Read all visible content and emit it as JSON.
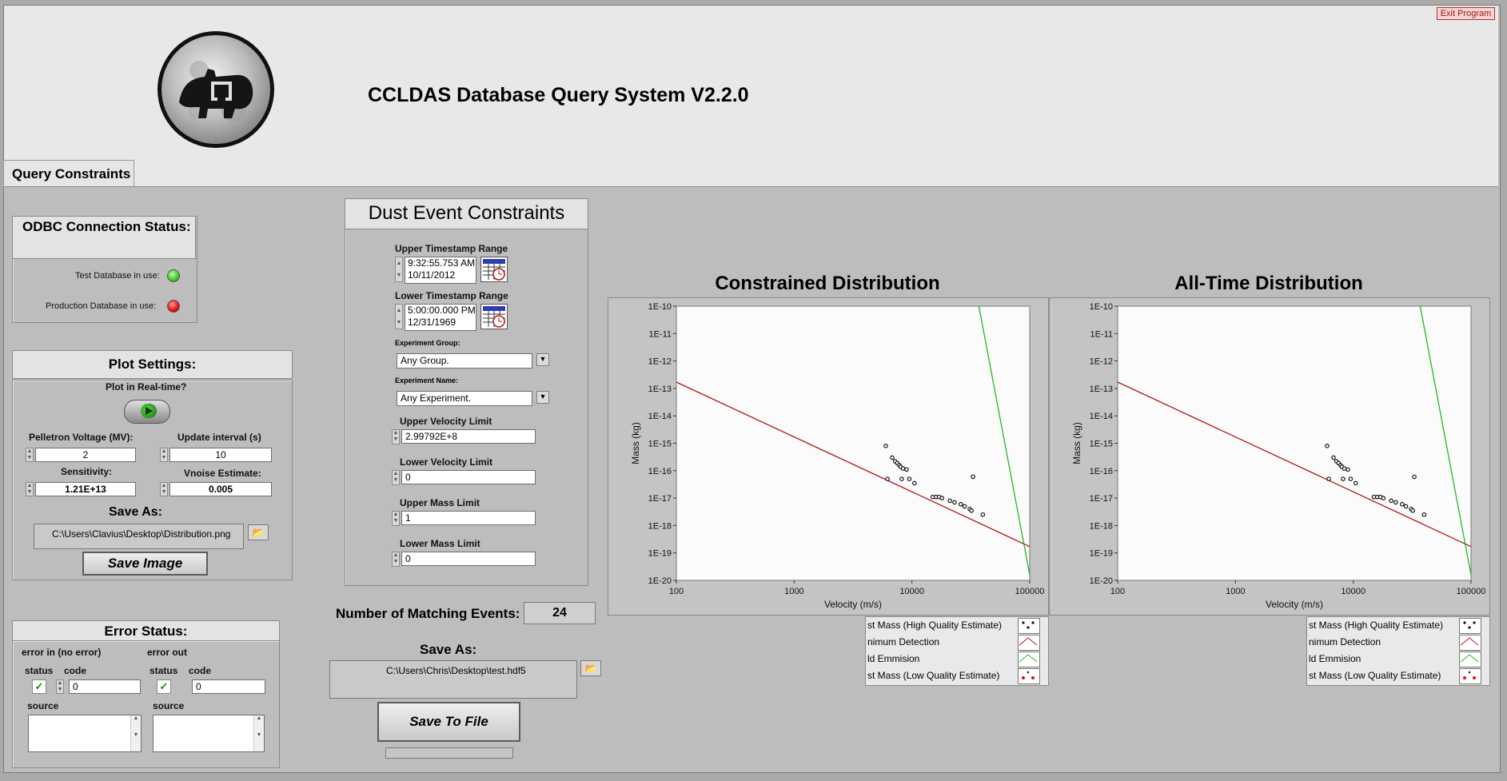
{
  "app": {
    "title": "CCLDAS Database Query System V2.2.0",
    "exit_label": "Exit Program"
  },
  "tabs": [
    {
      "label": "Query Constraints"
    }
  ],
  "odbc": {
    "title": "ODBC Connection Status:",
    "test_label": "Test Database in use:",
    "prod_label": "Production Database in use:",
    "test_color": "#3fc629",
    "prod_color": "#e01010"
  },
  "plot_settings": {
    "title": "Plot Settings:",
    "realtime_label": "Plot in Real-time?",
    "pelletron_label": "Pelletron Voltage (MV):",
    "pelletron_value": "2",
    "update_label": "Update interval (s)",
    "update_value": "10",
    "sensitivity_label": "Sensitivity:",
    "sensitivity_value": "1.21E+13",
    "vnoise_label": "Vnoise Estimate:",
    "vnoise_value": "0.005",
    "save_as_label": "Save As:",
    "save_path": "C:\\Users\\Clavius\\Desktop\\Distribution.png",
    "save_button": "Save Image"
  },
  "error_status": {
    "title": "Error Status:",
    "in_label": "error in (no error)",
    "out_label": "error out",
    "status_label": "status",
    "code_label": "code",
    "source_label": "source",
    "in_code": "0",
    "out_code": "0"
  },
  "dust": {
    "title": "Dust Event Constraints",
    "upper_ts_label": "Upper Timestamp Range",
    "upper_ts_time": "9:32:55.753 AM",
    "upper_ts_date": "10/11/2012",
    "lower_ts_label": "Lower Timestamp Range",
    "lower_ts_time": "5:00:00.000 PM",
    "lower_ts_date": "12/31/1969",
    "group_label": "Experiment Group:",
    "group_value": "Any Group.",
    "name_label": "Experiment Name:",
    "name_value": "Any Experiment.",
    "upper_vel_label": "Upper Velocity Limit",
    "upper_vel_value": "2.99792E+8",
    "lower_vel_label": "Lower Velocity Limit",
    "lower_vel_value": "0",
    "upper_mass_label": "Upper Mass Limit",
    "upper_mass_value": "1",
    "lower_mass_label": "Lower Mass Limit",
    "lower_mass_value": "0"
  },
  "matching": {
    "label": "Number of Matching Events:",
    "value": "24"
  },
  "file_save": {
    "label": "Save As:",
    "path": "C:\\Users\\Chris\\Desktop\\test.hdf5",
    "button": "Save To File"
  },
  "legend": [
    {
      "label": "st Mass (High Quality Estimate)",
      "kind": "points-black"
    },
    {
      "label": "nimum Detection",
      "kind": "line-red"
    },
    {
      "label": "ld Emmision",
      "kind": "line-green"
    },
    {
      "label": "st Mass (Low Quality Estimate)",
      "kind": "points-red"
    }
  ],
  "chart_data": [
    {
      "type": "scatter",
      "title": "Constrained Distribution",
      "xlabel": "Velocity (m/s)",
      "ylabel": "Mass (kg)",
      "x_scale": "log",
      "y_scale": "log",
      "xlim": [
        100,
        100000
      ],
      "ylim": [
        1e-20,
        1e-10
      ],
      "x_ticks": [
        "100",
        "1000",
        "10000",
        "100000"
      ],
      "y_ticks": [
        "1E-10",
        "1E-11",
        "1E-12",
        "1E-13",
        "1E-14",
        "1E-15",
        "1E-16",
        "1E-17",
        "1E-18",
        "1E-19",
        "1E-20"
      ],
      "lines": [
        {
          "name": "Minimum Detection",
          "color": "#b01818",
          "x": [
            100,
            100000
          ],
          "y": [
            1.7e-13,
            1.7e-19
          ]
        },
        {
          "name": "Field Emmision",
          "color": "#23b823",
          "x": [
            37000,
            100000
          ],
          "y": [
            1e-10,
            1.6e-20
          ]
        }
      ],
      "points": {
        "color": "#111111",
        "x": [
          6000,
          6200,
          6800,
          7200,
          7500,
          7800,
          8000,
          8200,
          8400,
          9000,
          9500,
          10500,
          15000,
          16000,
          17000,
          18000,
          21000,
          23000,
          26000,
          28000,
          31000,
          32000,
          33000,
          40000
        ],
        "y": [
          8e-16,
          5e-17,
          3e-16,
          2.2e-16,
          1.9e-16,
          1.6e-16,
          1.4e-16,
          5e-17,
          1.2e-16,
          1.1e-16,
          5e-17,
          3.5e-17,
          1.1e-17,
          1.1e-17,
          1.1e-17,
          1e-17,
          8e-18,
          7e-18,
          6e-18,
          5e-18,
          4e-18,
          3.5e-18,
          6e-17,
          2.5e-18
        ]
      }
    },
    {
      "type": "scatter",
      "title": "All-Time Distribution",
      "xlabel": "Velocity (m/s)",
      "ylabel": "Mass (kg)",
      "x_scale": "log",
      "y_scale": "log",
      "xlim": [
        100,
        100000
      ],
      "ylim": [
        1e-20,
        1e-10
      ],
      "x_ticks": [
        "100",
        "1000",
        "10000",
        "100000"
      ],
      "y_ticks": [
        "1E-10",
        "1E-11",
        "1E-12",
        "1E-13",
        "1E-14",
        "1E-15",
        "1E-16",
        "1E-17",
        "1E-18",
        "1E-19",
        "1E-20"
      ],
      "lines": [
        {
          "name": "Minimum Detection",
          "color": "#b01818",
          "x": [
            100,
            100000
          ],
          "y": [
            1.7e-13,
            1.7e-19
          ]
        },
        {
          "name": "Field Emmision",
          "color": "#23b823",
          "x": [
            37000,
            100000
          ],
          "y": [
            1e-10,
            1.6e-20
          ]
        }
      ],
      "points": {
        "color": "#111111",
        "x": [
          6000,
          6200,
          6800,
          7200,
          7500,
          7800,
          8000,
          8200,
          8400,
          9000,
          9500,
          10500,
          15000,
          16000,
          17000,
          18000,
          21000,
          23000,
          26000,
          28000,
          31000,
          32000,
          33000,
          40000
        ],
        "y": [
          8e-16,
          5e-17,
          3e-16,
          2.2e-16,
          1.9e-16,
          1.6e-16,
          1.4e-16,
          5e-17,
          1.2e-16,
          1.1e-16,
          5e-17,
          3.5e-17,
          1.1e-17,
          1.1e-17,
          1.1e-17,
          1e-17,
          8e-18,
          7e-18,
          6e-18,
          5e-18,
          4e-18,
          3.5e-18,
          6e-17,
          2.5e-18
        ]
      }
    }
  ]
}
